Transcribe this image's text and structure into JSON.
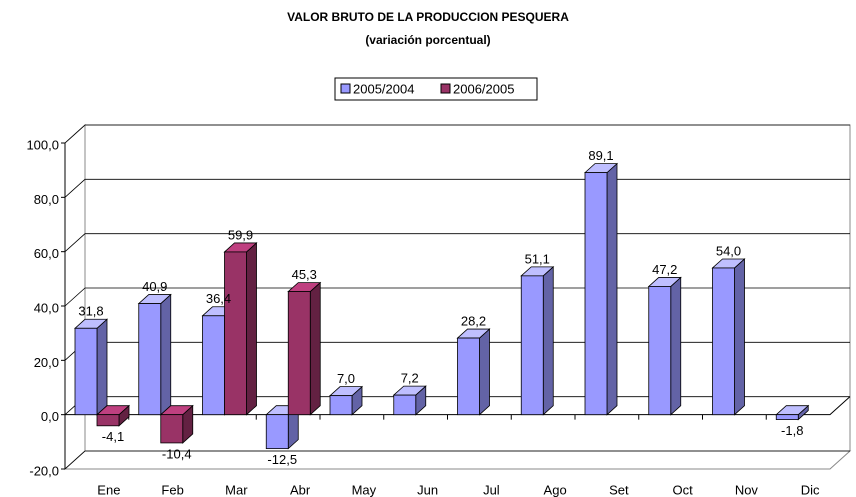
{
  "chart_data": {
    "type": "bar3d",
    "title": "VALOR BRUTO DE LA PRODUCCION PESQUERA",
    "subtitle": "(variación porcentual)",
    "categories": [
      "Ene",
      "Feb",
      "Mar",
      "Abr",
      "May",
      "Jun",
      "Jul",
      "Ago",
      "Set",
      "Oct",
      "Nov",
      "Dic"
    ],
    "series": [
      {
        "name": "2005/2004",
        "color": "#9999ff",
        "values": [
          31.8,
          40.9,
          36.4,
          -12.5,
          7.0,
          7.2,
          28.2,
          51.1,
          89.1,
          47.2,
          54.0,
          -1.8
        ],
        "value_labels": [
          "31,8",
          "40,9",
          "36,4",
          "-12,5",
          "7,0",
          "7,2",
          "28,2",
          "51,1",
          "89,1",
          "47,2",
          "54,0",
          "-1,8"
        ]
      },
      {
        "name": "2006/2005",
        "color": "#993366",
        "values": [
          -4.1,
          -10.4,
          59.9,
          45.3,
          null,
          null,
          null,
          null,
          null,
          null,
          null,
          null
        ],
        "value_labels": [
          "-4,1",
          "-10,4",
          "59,9",
          "45,3",
          null,
          null,
          null,
          null,
          null,
          null,
          null,
          null
        ]
      }
    ],
    "ylim": [
      -20,
      100
    ],
    "yticks": [
      {
        "value": -20,
        "label": "-20,0"
      },
      {
        "value": 0,
        "label": "0,0"
      },
      {
        "value": 20,
        "label": "20,0"
      },
      {
        "value": 40,
        "label": "40,0"
      },
      {
        "value": 60,
        "label": "60,0"
      },
      {
        "value": 80,
        "label": "80,0"
      },
      {
        "value": 100,
        "label": "100,0"
      }
    ],
    "grid": true,
    "legend": "top"
  }
}
